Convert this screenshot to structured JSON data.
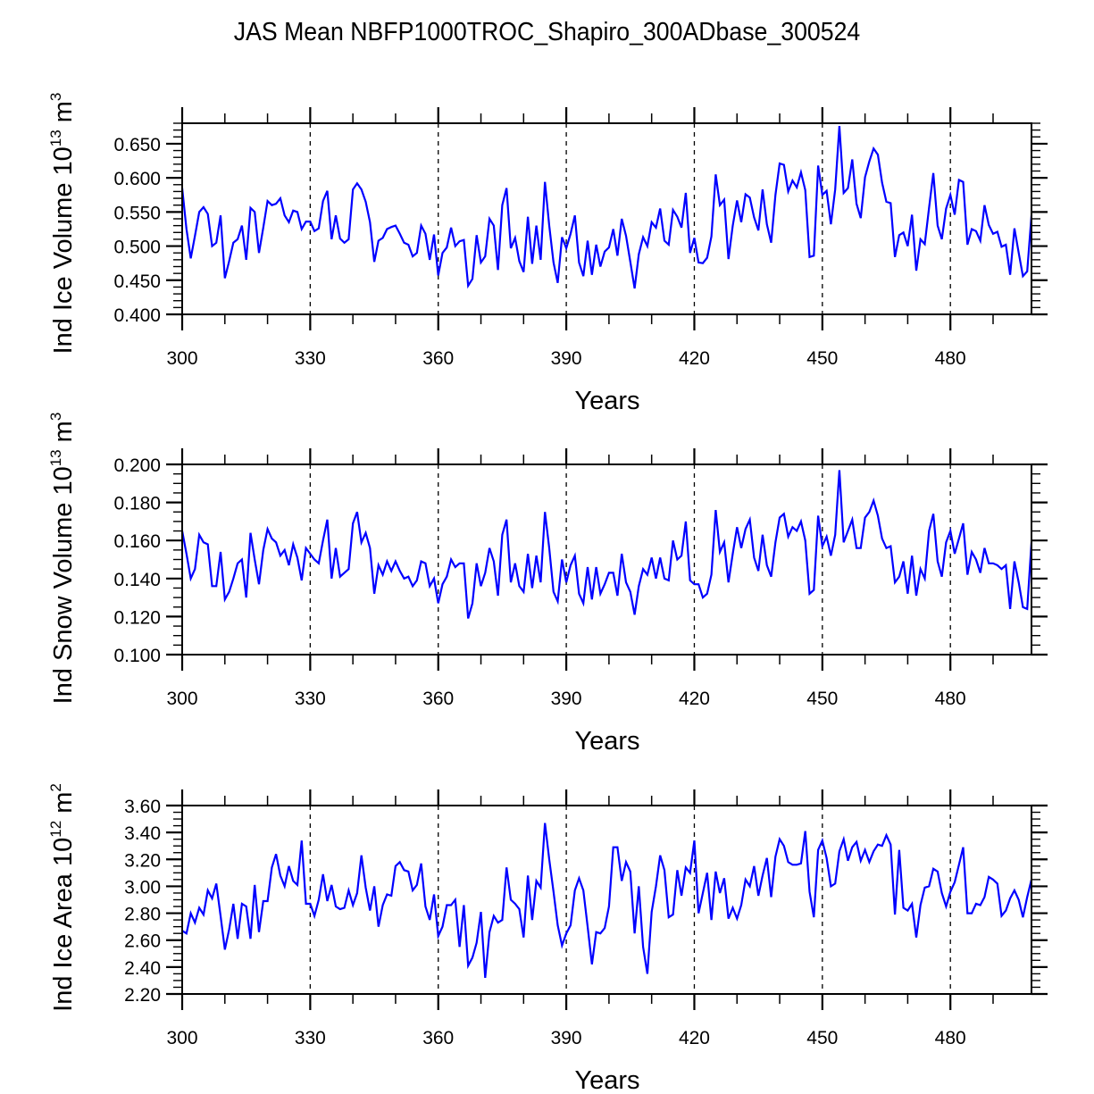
{
  "title": "JAS Mean NBFP1000TROC_Shapiro_300ADbase_300524",
  "colors": {
    "line": "#0000ff",
    "axis": "#000000"
  },
  "chart_data": [
    {
      "type": "line",
      "ylabel": "Ind Ice Volume 10",
      "ylabel_exp": "13",
      "ylabel_unit": " m",
      "ylabel_unit_exp": "3",
      "xlabel": "Years",
      "xlim": [
        300,
        499
      ],
      "ylim": [
        0.4,
        0.68
      ],
      "yticks": [
        "0.400",
        "0.450",
        "0.500",
        "0.550",
        "0.600",
        "0.650"
      ],
      "yticks_values": [
        0.4,
        0.45,
        0.5,
        0.55,
        0.6,
        0.65
      ],
      "xticks": [
        "300",
        "330",
        "360",
        "390",
        "420",
        "450",
        "480"
      ],
      "xticks_values": [
        300,
        330,
        360,
        390,
        420,
        450,
        480
      ],
      "grid": "vertical dashed at major x ticks",
      "x_start": 300,
      "values": [
        0.585,
        0.525,
        0.482,
        0.515,
        0.55,
        0.557,
        0.547,
        0.5,
        0.505,
        0.545,
        0.453,
        0.478,
        0.505,
        0.51,
        0.53,
        0.48,
        0.556,
        0.55,
        0.49,
        0.527,
        0.566,
        0.56,
        0.562,
        0.57,
        0.545,
        0.535,
        0.552,
        0.55,
        0.525,
        0.536,
        0.536,
        0.522,
        0.526,
        0.566,
        0.581,
        0.51,
        0.545,
        0.511,
        0.505,
        0.51,
        0.583,
        0.592,
        0.583,
        0.565,
        0.535,
        0.477,
        0.508,
        0.512,
        0.525,
        0.528,
        0.53,
        0.518,
        0.505,
        0.502,
        0.485,
        0.49,
        0.53,
        0.518,
        0.48,
        0.517,
        0.457,
        0.49,
        0.498,
        0.527,
        0.5,
        0.507,
        0.509,
        0.442,
        0.452,
        0.516,
        0.476,
        0.485,
        0.54,
        0.53,
        0.465,
        0.56,
        0.585,
        0.497,
        0.512,
        0.478,
        0.462,
        0.543,
        0.474,
        0.53,
        0.48,
        0.594,
        0.53,
        0.476,
        0.446,
        0.513,
        0.497,
        0.518,
        0.545,
        0.476,
        0.456,
        0.508,
        0.458,
        0.502,
        0.47,
        0.492,
        0.498,
        0.525,
        0.486,
        0.54,
        0.515,
        0.477,
        0.438,
        0.488,
        0.513,
        0.5,
        0.535,
        0.527,
        0.555,
        0.508,
        0.502,
        0.553,
        0.543,
        0.527,
        0.578,
        0.49,
        0.512,
        0.476,
        0.475,
        0.483,
        0.514,
        0.605,
        0.56,
        0.568,
        0.481,
        0.53,
        0.567,
        0.535,
        0.576,
        0.571,
        0.542,
        0.523,
        0.583,
        0.532,
        0.505,
        0.575,
        0.621,
        0.619,
        0.58,
        0.596,
        0.586,
        0.608,
        0.582,
        0.484,
        0.486,
        0.618,
        0.575,
        0.581,
        0.532,
        0.583,
        0.676,
        0.578,
        0.585,
        0.627,
        0.562,
        0.541,
        0.601,
        0.624,
        0.643,
        0.634,
        0.593,
        0.565,
        0.563,
        0.484,
        0.516,
        0.52,
        0.5,
        0.546,
        0.464,
        0.51,
        0.503,
        0.556,
        0.607,
        0.53,
        0.51,
        0.555,
        0.575,
        0.546,
        0.597,
        0.594,
        0.502,
        0.525,
        0.522,
        0.508,
        0.56,
        0.531,
        0.518,
        0.521,
        0.499,
        0.502,
        0.458,
        0.526,
        0.49,
        0.456,
        0.463,
        0.545
      ]
    },
    {
      "type": "line",
      "ylabel": "Ind Snow Volume 10",
      "ylabel_exp": "13",
      "ylabel_unit": " m",
      "ylabel_unit_exp": "3",
      "xlabel": "Years",
      "xlim": [
        300,
        499
      ],
      "ylim": [
        0.1,
        0.2
      ],
      "yticks": [
        "0.100",
        "0.120",
        "0.140",
        "0.160",
        "0.180",
        "0.200"
      ],
      "yticks_values": [
        0.1,
        0.12,
        0.14,
        0.16,
        0.18,
        0.2
      ],
      "xticks": [
        "300",
        "330",
        "360",
        "390",
        "420",
        "450",
        "480"
      ],
      "xticks_values": [
        300,
        330,
        360,
        390,
        420,
        450,
        480
      ],
      "grid": "vertical dashed at major x ticks",
      "x_start": 300,
      "values": [
        0.165,
        0.153,
        0.14,
        0.145,
        0.163,
        0.159,
        0.158,
        0.136,
        0.136,
        0.154,
        0.129,
        0.133,
        0.14,
        0.148,
        0.15,
        0.13,
        0.164,
        0.15,
        0.137,
        0.155,
        0.166,
        0.161,
        0.159,
        0.152,
        0.155,
        0.147,
        0.158,
        0.151,
        0.139,
        0.156,
        0.153,
        0.15,
        0.148,
        0.16,
        0.171,
        0.14,
        0.156,
        0.141,
        0.143,
        0.145,
        0.169,
        0.175,
        0.159,
        0.164,
        0.156,
        0.132,
        0.147,
        0.142,
        0.149,
        0.144,
        0.149,
        0.144,
        0.14,
        0.141,
        0.136,
        0.139,
        0.149,
        0.148,
        0.136,
        0.14,
        0.127,
        0.137,
        0.141,
        0.15,
        0.146,
        0.148,
        0.148,
        0.119,
        0.127,
        0.148,
        0.136,
        0.143,
        0.156,
        0.149,
        0.131,
        0.163,
        0.171,
        0.138,
        0.148,
        0.136,
        0.133,
        0.153,
        0.135,
        0.152,
        0.138,
        0.175,
        0.156,
        0.133,
        0.128,
        0.15,
        0.138,
        0.147,
        0.152,
        0.132,
        0.127,
        0.146,
        0.129,
        0.146,
        0.132,
        0.137,
        0.143,
        0.143,
        0.131,
        0.153,
        0.138,
        0.133,
        0.121,
        0.136,
        0.145,
        0.142,
        0.151,
        0.14,
        0.151,
        0.14,
        0.139,
        0.16,
        0.15,
        0.152,
        0.17,
        0.139,
        0.137,
        0.137,
        0.13,
        0.132,
        0.142,
        0.176,
        0.154,
        0.159,
        0.138,
        0.153,
        0.167,
        0.156,
        0.166,
        0.171,
        0.151,
        0.144,
        0.163,
        0.147,
        0.141,
        0.159,
        0.172,
        0.174,
        0.162,
        0.167,
        0.165,
        0.17,
        0.16,
        0.132,
        0.134,
        0.173,
        0.157,
        0.162,
        0.152,
        0.163,
        0.197,
        0.159,
        0.165,
        0.171,
        0.156,
        0.156,
        0.172,
        0.175,
        0.181,
        0.173,
        0.161,
        0.156,
        0.157,
        0.138,
        0.141,
        0.149,
        0.132,
        0.152,
        0.131,
        0.145,
        0.14,
        0.165,
        0.174,
        0.149,
        0.141,
        0.159,
        0.165,
        0.153,
        0.161,
        0.169,
        0.142,
        0.154,
        0.15,
        0.143,
        0.156,
        0.148,
        0.148,
        0.147,
        0.145,
        0.147,
        0.124,
        0.149,
        0.138,
        0.125,
        0.124,
        0.159
      ]
    },
    {
      "type": "line",
      "ylabel": "Ind Ice Area 10",
      "ylabel_exp": "12",
      "ylabel_unit": " m",
      "ylabel_unit_exp": "2",
      "xlabel": "Years",
      "xlim": [
        300,
        499
      ],
      "ylim": [
        2.2,
        3.6
      ],
      "yticks": [
        "2.20",
        "2.40",
        "2.60",
        "2.80",
        "3.00",
        "3.20",
        "3.40",
        "3.60"
      ],
      "yticks_values": [
        2.2,
        2.4,
        2.6,
        2.8,
        3.0,
        3.2,
        3.4,
        3.6
      ],
      "xticks": [
        "300",
        "330",
        "360",
        "390",
        "420",
        "450",
        "480"
      ],
      "xticks_values": [
        300,
        330,
        360,
        390,
        420,
        450,
        480
      ],
      "grid": "vertical dashed at major x ticks",
      "x_start": 300,
      "values": [
        2.67,
        2.65,
        2.8,
        2.73,
        2.84,
        2.79,
        2.97,
        2.91,
        3.02,
        2.78,
        2.53,
        2.68,
        2.87,
        2.61,
        2.87,
        2.85,
        2.61,
        3.01,
        2.66,
        2.89,
        2.89,
        3.14,
        3.24,
        3.08,
        3.0,
        3.15,
        3.04,
        3.01,
        3.34,
        2.87,
        2.87,
        2.78,
        2.9,
        3.09,
        2.89,
        3.01,
        2.85,
        2.83,
        2.84,
        2.97,
        2.86,
        2.95,
        3.23,
        2.99,
        2.82,
        3.0,
        2.7,
        2.86,
        2.94,
        2.93,
        3.15,
        3.18,
        3.12,
        3.11,
        2.97,
        3.01,
        3.17,
        2.85,
        2.75,
        2.94,
        2.63,
        2.7,
        2.86,
        2.86,
        2.9,
        2.55,
        2.86,
        2.41,
        2.47,
        2.58,
        2.81,
        2.32,
        2.66,
        2.78,
        2.73,
        2.75,
        3.14,
        2.9,
        2.87,
        2.83,
        2.62,
        3.08,
        2.75,
        3.04,
        2.99,
        3.47,
        3.2,
        2.96,
        2.71,
        2.56,
        2.65,
        2.71,
        2.97,
        3.06,
        2.97,
        2.7,
        2.42,
        2.66,
        2.65,
        2.69,
        2.85,
        3.29,
        3.29,
        3.04,
        3.18,
        3.11,
        2.65,
        3.0,
        2.55,
        2.35,
        2.81,
        3.0,
        3.23,
        3.12,
        2.77,
        2.79,
        3.12,
        2.93,
        3.14,
        3.1,
        3.34,
        2.8,
        2.95,
        3.1,
        2.75,
        3.11,
        2.95,
        3.06,
        2.76,
        2.84,
        2.76,
        2.86,
        3.05,
        3.0,
        3.15,
        2.93,
        3.08,
        3.21,
        2.92,
        3.22,
        3.35,
        3.3,
        3.18,
        3.16,
        3.16,
        3.17,
        3.41,
        2.96,
        2.77,
        3.27,
        3.34,
        3.21,
        3.0,
        3.02,
        3.26,
        3.35,
        3.19,
        3.29,
        3.33,
        3.19,
        3.27,
        3.18,
        3.26,
        3.31,
        3.3,
        3.38,
        3.31,
        2.79,
        3.27,
        2.84,
        2.82,
        2.87,
        2.62,
        2.86,
        2.99,
        3.0,
        3.13,
        3.11,
        2.95,
        2.85,
        2.96,
        3.03,
        3.16,
        3.29,
        2.8,
        2.8,
        2.87,
        2.86,
        2.92,
        3.07,
        3.05,
        3.02,
        2.78,
        2.82,
        2.91,
        2.97,
        2.9,
        2.77,
        2.92,
        3.05
      ]
    }
  ]
}
